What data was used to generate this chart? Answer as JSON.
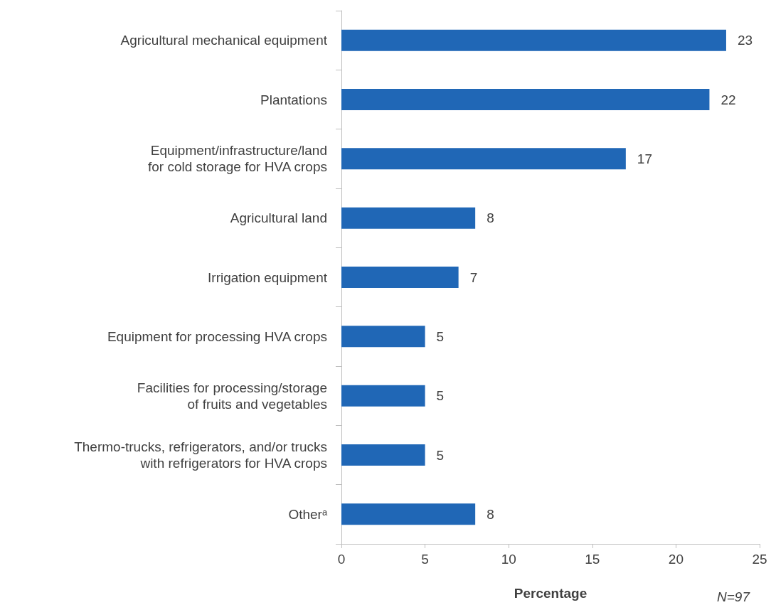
{
  "chart_data": {
    "type": "bar",
    "orientation": "horizontal",
    "xlabel": "Percentage",
    "categories": [
      "Agricultural mechanical equipment",
      "Plantations",
      "Equipment/infrastructure/land\nfor cold storage for HVA crops",
      "Agricultural land",
      "Irrigation equipment",
      "Equipment for processing HVA crops",
      "Facilities for processing/storage\nof fruits and vegetables",
      "Thermo-trucks, refrigerators, and/or trucks\nwith refrigerators for HVA crops",
      "Otherᵃ"
    ],
    "values": [
      23,
      22,
      17,
      8,
      7,
      5,
      5,
      5,
      8
    ],
    "color": "#2067b6",
    "xlim": [
      0,
      25
    ],
    "xticks": [
      0,
      5,
      10,
      15,
      20,
      25
    ],
    "data_labels": true,
    "grid": false,
    "annotations": [
      "N=97"
    ]
  }
}
